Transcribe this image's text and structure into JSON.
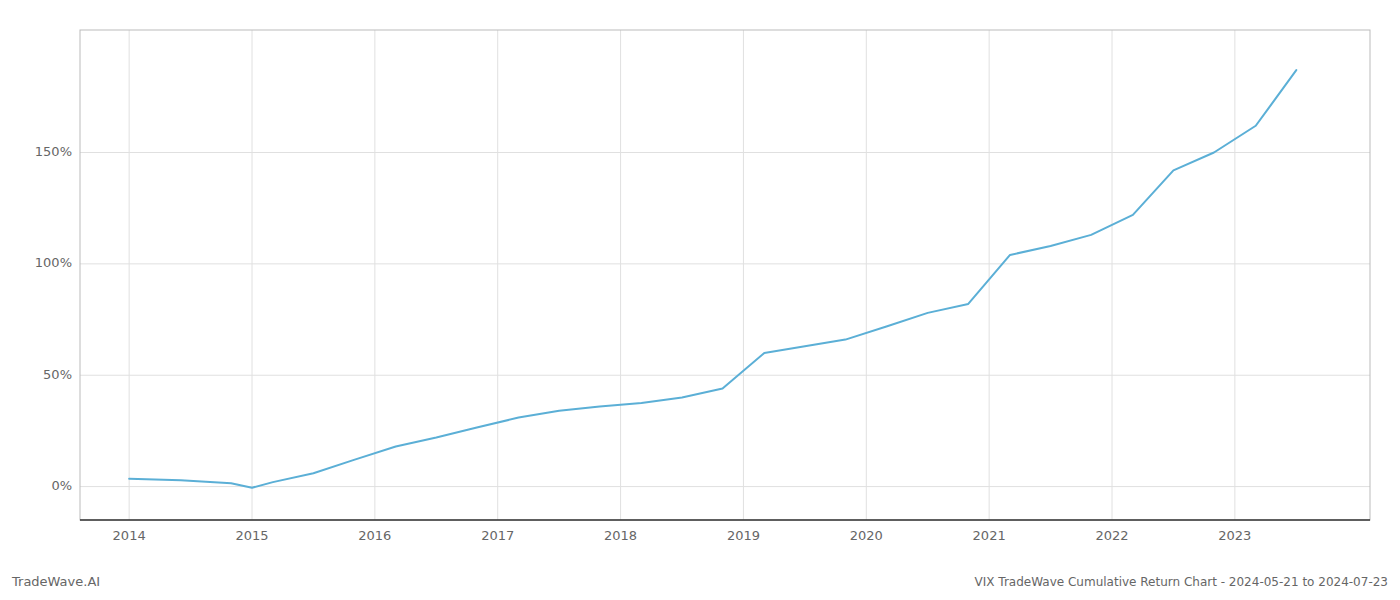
{
  "chart_data": {
    "type": "line",
    "title": "VIX TradeWave Cumulative Return Chart - 2024-05-21 to 2024-07-23",
    "annotations": [
      "TradeWave.AI"
    ],
    "x": [
      2014.0,
      2014.42,
      2014.83,
      2015.0,
      2015.17,
      2015.5,
      2015.83,
      2016.17,
      2016.5,
      2016.83,
      2017.17,
      2017.5,
      2017.83,
      2018.17,
      2018.5,
      2018.83,
      2019.17,
      2019.5,
      2019.83,
      2020.17,
      2020.5,
      2020.83,
      2021.17,
      2021.5,
      2021.83,
      2022.17,
      2022.5,
      2022.83,
      2023.17,
      2023.5
    ],
    "values": [
      3.5,
      2.8,
      1.5,
      -0.5,
      2.0,
      6.0,
      12.0,
      18.0,
      22.0,
      26.5,
      31.0,
      34.0,
      36.0,
      37.5,
      40.0,
      44.0,
      60.0,
      63.0,
      66.0,
      72.0,
      78.0,
      82.0,
      104.0,
      108.0,
      113.0,
      122.0,
      142.0,
      150.0,
      162.0,
      187.0
    ],
    "color": "#5bafd6",
    "xlim": [
      2013.6,
      2024.1
    ],
    "ylim": [
      -15,
      205
    ],
    "xticks": [
      2014,
      2015,
      2016,
      2017,
      2018,
      2019,
      2020,
      2021,
      2022,
      2023
    ],
    "yticks": [
      {
        "value": 0,
        "label": "0%"
      },
      {
        "value": 50,
        "label": "50%"
      },
      {
        "value": 100,
        "label": "100%"
      },
      {
        "value": 150,
        "label": "150%"
      }
    ],
    "grid": true
  }
}
